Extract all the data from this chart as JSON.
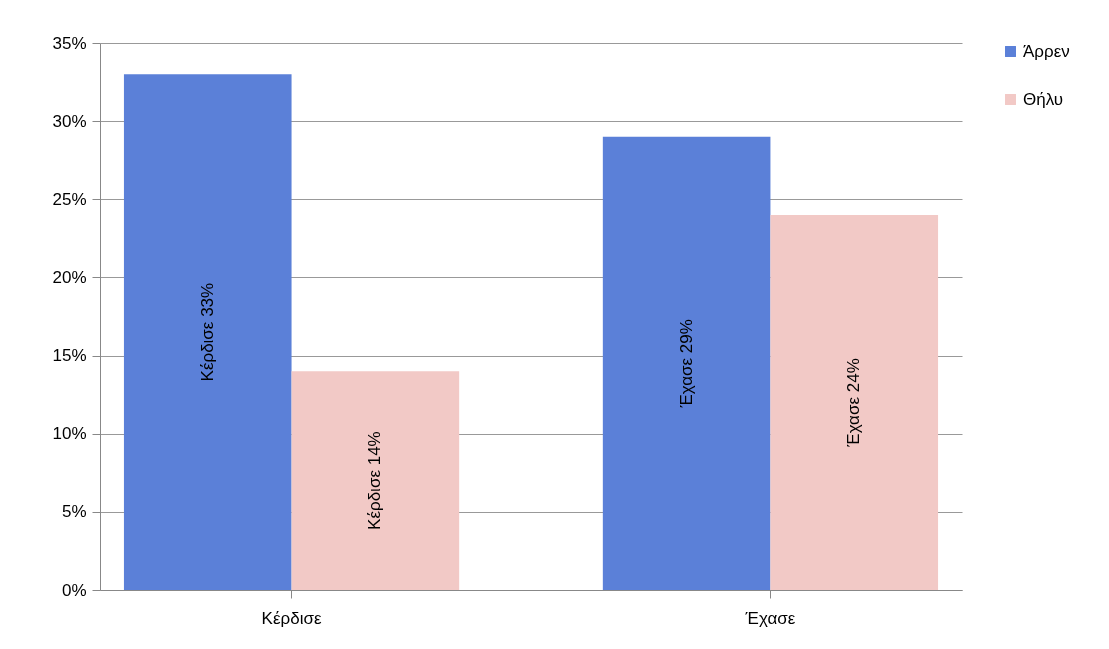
{
  "chart_data": {
    "type": "bar",
    "categories": [
      "Κέρδισε",
      "Έχασε"
    ],
    "series": [
      {
        "name": "Άρρεν",
        "color": "#5b80d8",
        "values": [
          33,
          29
        ],
        "value_labels": [
          "Κέρδισε 33%",
          "Έχασε 29%"
        ]
      },
      {
        "name": "Θήλυ",
        "color": "#f2c9c6",
        "values": [
          14,
          24
        ],
        "value_labels": [
          "Κέρδισε 14%",
          "Έχασε 24%"
        ]
      }
    ],
    "ylim": [
      0,
      35
    ],
    "yticks": [
      {
        "value": 0,
        "label": "0%"
      },
      {
        "value": 5,
        "label": "5%"
      },
      {
        "value": 10,
        "label": "10%"
      },
      {
        "value": 15,
        "label": "15%"
      },
      {
        "value": 20,
        "label": "20%"
      },
      {
        "value": 25,
        "label": "25%"
      },
      {
        "value": 30,
        "label": "30%"
      },
      {
        "value": 35,
        "label": "35%"
      }
    ],
    "grid": "y",
    "legend": "right"
  }
}
